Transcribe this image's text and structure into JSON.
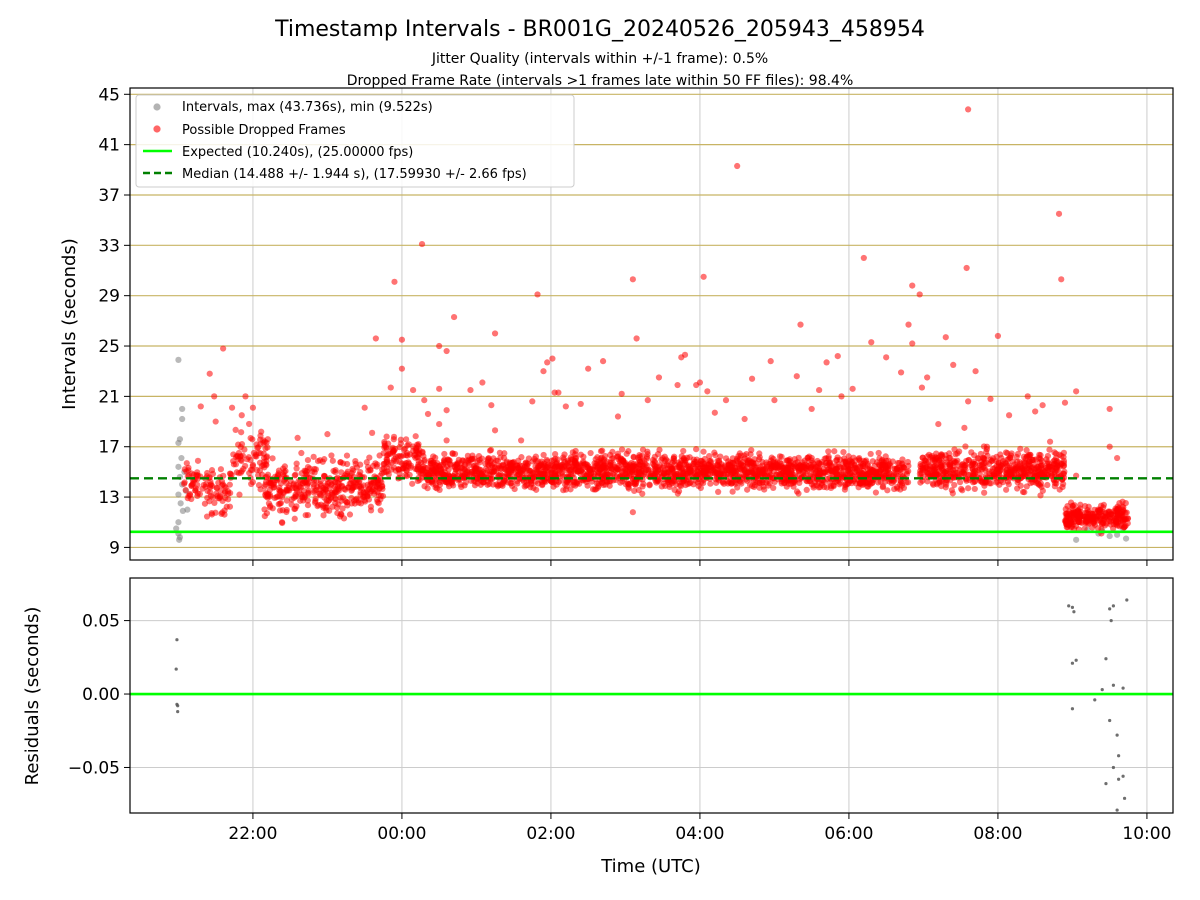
{
  "title": "Timestamp Intervals - BR001G_20240526_205943_458954",
  "subtitle_1": "Jitter Quality (intervals within +/-1 frame): 0.5%",
  "subtitle_2": "Dropped Frame Rate (intervals >1 frames late within 50 FF files): 98.4%",
  "colors": {
    "intervals": "#808080",
    "dropped": "#ff0000",
    "expected": "#00ff00",
    "median": "#008000",
    "y_grid": "#c8b464",
    "x_grid": "#cccccc"
  },
  "chart_data": [
    {
      "type": "scatter",
      "ylabel": "Intervals (seconds)",
      "ylim": [
        8.0,
        45.5
      ],
      "yticks": [
        9,
        13,
        17,
        21,
        25,
        29,
        33,
        37,
        41,
        45
      ],
      "xlim_hours": [
        20.35,
        34.35
      ],
      "xticks_hours": [
        22,
        24,
        26,
        28,
        30,
        32,
        34
      ],
      "xtick_labels": [
        "22:00",
        "00:00",
        "02:00",
        "04:00",
        "06:00",
        "08:00",
        "10:00"
      ],
      "legend_position": "upper-left",
      "legend": [
        "Intervals, max (43.736s), min (9.522s)",
        "Possible Dropped Frames",
        "Expected (10.240s), (25.00000 fps)",
        "Median (14.488 +/- 1.944 s), (17.59930 +/- 2.66 fps)"
      ],
      "expected_interval": 10.24,
      "median_interval": 14.488,
      "max_interval": 43.736,
      "min_interval": 9.522,
      "series": [
        {
          "name": "Intervals",
          "points": [
            [
              21.0,
              23.9
            ],
            [
              21.05,
              20.0
            ],
            [
              21.05,
              19.2
            ],
            [
              21.02,
              17.6
            ],
            [
              21.0,
              17.3
            ],
            [
              21.04,
              16.1
            ],
            [
              21.0,
              15.4
            ],
            [
              21.02,
              14.6
            ],
            [
              21.05,
              14.0
            ],
            [
              21.0,
              13.2
            ],
            [
              21.03,
              12.5
            ],
            [
              21.06,
              11.9
            ],
            [
              21.0,
              11.0
            ],
            [
              20.97,
              10.5
            ],
            [
              21.0,
              10.1
            ],
            [
              21.02,
              9.8
            ],
            [
              21.01,
              9.6
            ],
            [
              21.08,
              15.0
            ],
            [
              21.1,
              13.5
            ],
            [
              21.12,
              12.0
            ],
            [
              33.05,
              9.6
            ],
            [
              33.2,
              10.4
            ],
            [
              33.35,
              10.1
            ],
            [
              33.5,
              9.9
            ],
            [
              33.6,
              10.0
            ],
            [
              33.72,
              9.7
            ],
            [
              33.68,
              10.5
            ],
            [
              33.4,
              10.3
            ]
          ]
        },
        {
          "name": "Possible Dropped Frames",
          "points": [
            [
              21.6,
              24.8
            ],
            [
              21.42,
              22.8
            ],
            [
              21.48,
              21.0
            ],
            [
              21.72,
              20.1
            ],
            [
              21.9,
              21.0
            ],
            [
              22.0,
              20.1
            ],
            [
              22.2,
              17.6
            ],
            [
              21.3,
              20.2
            ],
            [
              21.5,
              19.0
            ],
            [
              21.85,
              19.5
            ],
            [
              22.6,
              17.7
            ],
            [
              22.65,
              16.5
            ],
            [
              23.0,
              18.0
            ],
            [
              23.6,
              18.1
            ],
            [
              23.7,
              16.3
            ],
            [
              23.8,
              15.8
            ],
            [
              23.5,
              20.1
            ],
            [
              23.65,
              25.6
            ],
            [
              23.85,
              21.7
            ],
            [
              23.9,
              30.1
            ],
            [
              24.0,
              25.5
            ],
            [
              24.0,
              23.2
            ],
            [
              24.15,
              21.5
            ],
            [
              24.3,
              20.7
            ],
            [
              24.35,
              19.6
            ],
            [
              24.27,
              33.1
            ],
            [
              24.5,
              21.6
            ],
            [
              24.5,
              18.8
            ],
            [
              24.6,
              19.9
            ],
            [
              24.6,
              17.5
            ],
            [
              24.5,
              25.0
            ],
            [
              24.6,
              24.6
            ],
            [
              24.7,
              27.3
            ],
            [
              24.92,
              21.5
            ],
            [
              25.08,
              22.1
            ],
            [
              25.25,
              26.0
            ],
            [
              25.25,
              18.3
            ],
            [
              25.2,
              20.3
            ],
            [
              25.6,
              17.5
            ],
            [
              25.75,
              20.6
            ],
            [
              25.82,
              29.1
            ],
            [
              25.9,
              23.0
            ],
            [
              25.95,
              23.7
            ],
            [
              26.02,
              24.0
            ],
            [
              26.05,
              21.3
            ],
            [
              26.1,
              21.3
            ],
            [
              26.2,
              20.2
            ],
            [
              26.4,
              20.4
            ],
            [
              26.5,
              23.2
            ],
            [
              26.7,
              23.8
            ],
            [
              26.95,
              21.2
            ],
            [
              26.9,
              19.4
            ],
            [
              27.1,
              30.3
            ],
            [
              27.15,
              25.6
            ],
            [
              27.3,
              20.7
            ],
            [
              27.45,
              22.5
            ],
            [
              27.7,
              21.9
            ],
            [
              27.75,
              24.1
            ],
            [
              27.8,
              24.3
            ],
            [
              27.95,
              21.9
            ],
            [
              28.0,
              22.1
            ],
            [
              28.05,
              30.5
            ],
            [
              28.1,
              21.4
            ],
            [
              28.2,
              19.7
            ],
            [
              28.35,
              20.7
            ],
            [
              28.5,
              39.3
            ],
            [
              28.6,
              19.2
            ],
            [
              28.7,
              22.4
            ],
            [
              28.95,
              23.8
            ],
            [
              29.0,
              20.7
            ],
            [
              29.3,
              22.6
            ],
            [
              29.35,
              26.7
            ],
            [
              29.5,
              20.0
            ],
            [
              29.6,
              21.5
            ],
            [
              29.7,
              23.7
            ],
            [
              29.85,
              24.2
            ],
            [
              29.9,
              21.0
            ],
            [
              30.05,
              21.6
            ],
            [
              30.2,
              32.0
            ],
            [
              30.3,
              25.3
            ],
            [
              30.5,
              24.1
            ],
            [
              30.7,
              22.9
            ],
            [
              30.8,
              26.7
            ],
            [
              30.85,
              29.8
            ],
            [
              30.95,
              29.1
            ],
            [
              30.85,
              25.2
            ],
            [
              30.98,
              21.7
            ],
            [
              31.05,
              22.5
            ],
            [
              31.2,
              18.8
            ],
            [
              31.3,
              25.7
            ],
            [
              31.4,
              23.5
            ],
            [
              31.55,
              18.5
            ],
            [
              31.6,
              20.6
            ],
            [
              31.58,
              31.2
            ],
            [
              31.6,
              43.8
            ],
            [
              31.7,
              23.0
            ],
            [
              31.9,
              20.8
            ],
            [
              32.0,
              25.8
            ],
            [
              32.15,
              19.5
            ],
            [
              32.4,
              21.0
            ],
            [
              32.5,
              19.8
            ],
            [
              32.6,
              20.3
            ],
            [
              32.7,
              17.4
            ],
            [
              32.82,
              35.5
            ],
            [
              32.85,
              30.3
            ],
            [
              32.9,
              20.5
            ],
            [
              33.05,
              21.4
            ],
            [
              33.05,
              14.7
            ],
            [
              33.5,
              20.0
            ],
            [
              33.5,
              17.0
            ],
            [
              33.6,
              16.1
            ],
            [
              27.1,
              11.8
            ]
          ]
        },
        {
          "name": "Possible Dropped Frames",
          "bands": [
            [
              21.05,
              21.35,
              11.6,
              16.5,
              40
            ],
            [
              21.35,
              21.7,
              10.8,
              16.0,
              60
            ],
            [
              21.7,
              22.2,
              12.5,
              19.5,
              80
            ],
            [
              22.15,
              22.6,
              10.5,
              16.8,
              110
            ],
            [
              22.6,
              23.4,
              10.7,
              17.0,
              200
            ],
            [
              23.4,
              23.75,
              11.2,
              16.5,
              90
            ],
            [
              23.75,
              24.3,
              13.0,
              18.5,
              130
            ],
            [
              24.3,
              26.0,
              13.0,
              17.0,
              480
            ],
            [
              26.0,
              28.0,
              13.0,
              17.2,
              620
            ],
            [
              28.0,
              30.0,
              13.0,
              17.0,
              620
            ],
            [
              30.0,
              30.8,
              13.0,
              16.8,
              240
            ],
            [
              30.95,
              31.8,
              13.0,
              17.3,
              230
            ],
            [
              31.8,
              32.9,
              13.0,
              17.3,
              330
            ],
            [
              32.9,
              33.75,
              10.0,
              12.8,
              250
            ]
          ]
        }
      ]
    },
    {
      "type": "scatter",
      "ylabel": "Residuals (seconds)",
      "xlabel": "Time (UTC)",
      "ylim": [
        -0.081,
        0.079
      ],
      "yticks": [
        0.05,
        0.0,
        -0.05
      ],
      "ytick_labels": [
        "0.05",
        "0.00",
        "−0.05"
      ],
      "zero_line": 0.0,
      "series": [
        {
          "name": "Residuals",
          "points": [
            [
              20.98,
              0.037
            ],
            [
              20.97,
              0.017
            ],
            [
              20.98,
              -0.007
            ],
            [
              20.99,
              -0.008
            ],
            [
              20.99,
              -0.012
            ],
            [
              32.95,
              0.06
            ],
            [
              33.0,
              0.059
            ],
            [
              33.02,
              0.056
            ],
            [
              33.0,
              0.021
            ],
            [
              33.05,
              0.023
            ],
            [
              33.0,
              -0.01
            ],
            [
              33.4,
              0.003
            ],
            [
              33.45,
              0.024
            ],
            [
              33.5,
              0.058
            ],
            [
              33.55,
              0.06
            ],
            [
              33.52,
              0.05
            ],
            [
              33.55,
              0.006
            ],
            [
              33.68,
              0.004
            ],
            [
              33.73,
              0.064
            ],
            [
              33.5,
              -0.018
            ],
            [
              33.6,
              -0.028
            ],
            [
              33.62,
              -0.042
            ],
            [
              33.55,
              -0.05
            ],
            [
              33.68,
              -0.056
            ],
            [
              33.45,
              -0.061
            ],
            [
              33.62,
              -0.058
            ],
            [
              33.7,
              -0.071
            ],
            [
              33.6,
              -0.079
            ],
            [
              33.3,
              -0.004
            ]
          ]
        }
      ]
    }
  ]
}
